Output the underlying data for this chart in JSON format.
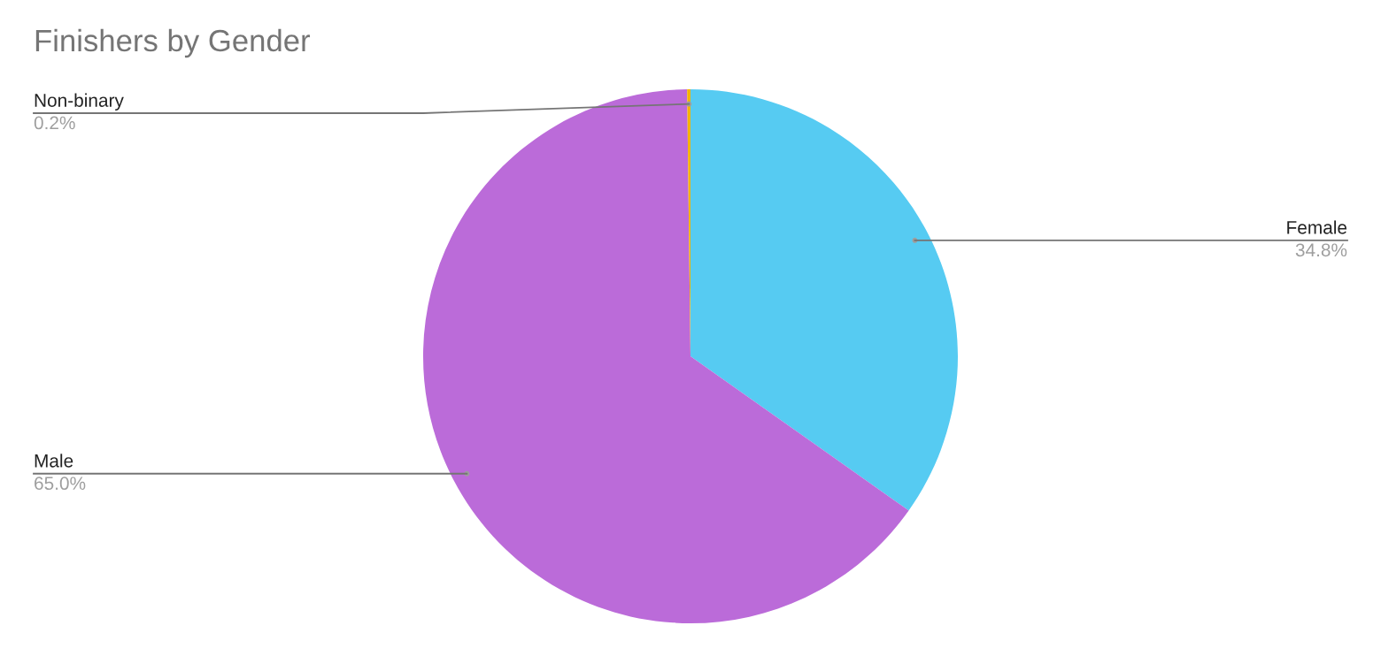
{
  "chart_data": {
    "type": "pie",
    "title": "Finishers by Gender",
    "categories": [
      "Female",
      "Male",
      "Non-binary"
    ],
    "values": [
      34.8,
      65.0,
      0.2
    ],
    "colors": [
      "#56cbf2",
      "#bb6bd9",
      "#f4b400"
    ],
    "value_labels": [
      "34.8%",
      "65.0%",
      "0.2%"
    ],
    "legend": false
  }
}
